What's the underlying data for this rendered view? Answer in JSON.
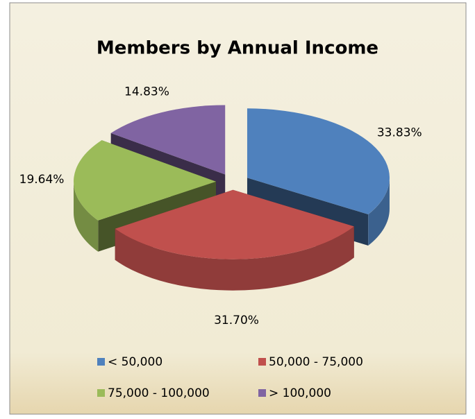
{
  "chart_data": {
    "type": "pie3d",
    "title": "Members by Annual Income",
    "categories": [
      "< 50,000",
      "50,000 - 75,000",
      "75,000 - 100,000",
      "> 100,000"
    ],
    "values": [
      33.83,
      31.7,
      19.64,
      14.83
    ],
    "value_labels": [
      "33.83%",
      "31.70%",
      "19.64%",
      "14.83%"
    ],
    "colors": [
      "#4f81bd",
      "#c0504d",
      "#9bbb59",
      "#8064a2"
    ],
    "legend": "bottom"
  }
}
